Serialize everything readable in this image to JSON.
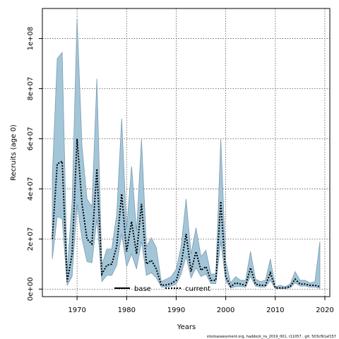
{
  "chart_data": {
    "type": "area",
    "xlabel": "Years",
    "ylabel": "Recruits (age 0)",
    "xlim": [
      1963,
      2021
    ],
    "ylim": [
      -3000000,
      112000000
    ],
    "xticks": [
      1970,
      1980,
      1990,
      2000,
      2010,
      2020
    ],
    "xtick_labels": [
      "1970",
      "1980",
      "1990",
      "2000",
      "2010",
      "2020"
    ],
    "yticks": [
      0,
      20000000,
      40000000,
      60000000,
      80000000,
      100000000
    ],
    "ytick_labels": [
      "0e+00",
      "2e+07",
      "4e+07",
      "6e+07",
      "8e+07",
      "1e+08"
    ],
    "grid": true,
    "legend_position": "bottom-center",
    "series": [
      {
        "name": "current",
        "style": "dotted",
        "color": "#000000",
        "x": [
          1965,
          1966,
          1967,
          1968,
          1969,
          1970,
          1971,
          1972,
          1973,
          1974,
          1975,
          1976,
          1977,
          1978,
          1979,
          1980,
          1981,
          1982,
          1983,
          1984,
          1985,
          1986,
          1987,
          1988,
          1989,
          1990,
          1991,
          1992,
          1993,
          1994,
          1995,
          1996,
          1997,
          1998,
          1999,
          2000,
          2001,
          2002,
          2003,
          2004,
          2005,
          2006,
          2007,
          2008,
          2009,
          2010,
          2011,
          2012,
          2013,
          2014,
          2015,
          2016,
          2017,
          2018,
          2019
        ],
        "values": [
          20000000,
          50000000,
          51000000,
          3000000,
          14000000,
          60000000,
          34000000,
          20000000,
          18000000,
          48000000,
          6000000,
          9500000,
          10000000,
          17000000,
          38000000,
          15000000,
          27000000,
          14000000,
          34000000,
          10000000,
          11500000,
          8000000,
          1500000,
          1700000,
          2200000,
          3500000,
          10000000,
          22000000,
          7000000,
          15000000,
          7500000,
          9000000,
          3500000,
          3500000,
          35000000,
          5000000,
          1000000,
          2500000,
          2000000,
          1500000,
          8500000,
          2000000,
          1500000,
          1500000,
          6500000,
          500000,
          500000,
          500000,
          1000000,
          4000000,
          2000000,
          2000000,
          1500000,
          1500000,
          1000000
        ]
      },
      {
        "name": "base",
        "style": "solid",
        "color": "#000000",
        "x": [],
        "values": []
      }
    ],
    "band": {
      "color": "#a3c5d8",
      "edge_color": "#7a9eb3",
      "x": [
        1965,
        1966,
        1967,
        1968,
        1969,
        1970,
        1971,
        1972,
        1973,
        1974,
        1975,
        1976,
        1977,
        1978,
        1979,
        1980,
        1981,
        1982,
        1983,
        1984,
        1985,
        1986,
        1987,
        1988,
        1989,
        1990,
        1991,
        1992,
        1993,
        1994,
        1995,
        1996,
        1997,
        1998,
        1999,
        2000,
        2001,
        2002,
        2003,
        2004,
        2005,
        2006,
        2007,
        2008,
        2009,
        2010,
        2011,
        2012,
        2013,
        2014,
        2015,
        2016,
        2017,
        2018,
        2019
      ],
      "upper": [
        45000000,
        92000000,
        94500000,
        7000000,
        35000000,
        108000000,
        57000000,
        36000000,
        33000000,
        84000000,
        9500000,
        16000000,
        16000000,
        30000000,
        68000000,
        24000000,
        49000000,
        23000000,
        60000000,
        17000000,
        20500000,
        16500000,
        3000000,
        4000000,
        5000000,
        8000000,
        17000000,
        36000000,
        14000000,
        24500000,
        13000000,
        15500000,
        6000000,
        6000000,
        60000000,
        11000000,
        2500000,
        5000000,
        3500000,
        3500000,
        15000000,
        4000000,
        3000000,
        3500000,
        12000000,
        1000000,
        1500000,
        1000000,
        2000000,
        7000000,
        3500000,
        3500000,
        2500000,
        3000000,
        19000000
      ],
      "lower": [
        12000000,
        29000000,
        28000000,
        1500000,
        5000000,
        34000000,
        20000000,
        11000000,
        10500000,
        28000000,
        3000000,
        5500000,
        5500000,
        9500000,
        22000000,
        9000000,
        14000000,
        8000000,
        19000000,
        5500000,
        6500000,
        4500000,
        800000,
        900000,
        1200000,
        2000000,
        6000000,
        13000000,
        4500000,
        8500000,
        5000000,
        6000000,
        2200000,
        2200000,
        19000000,
        3200000,
        400000,
        1000000,
        1000000,
        800000,
        5000000,
        1200000,
        800000,
        800000,
        3500000,
        200000,
        200000,
        200000,
        500000,
        2500000,
        1200000,
        1200000,
        800000,
        800000,
        300000
      ]
    }
  },
  "footnote": "stockassessment.org,  haddock_ns_2019_001,  r11057 ,  git: 503cf91af157"
}
